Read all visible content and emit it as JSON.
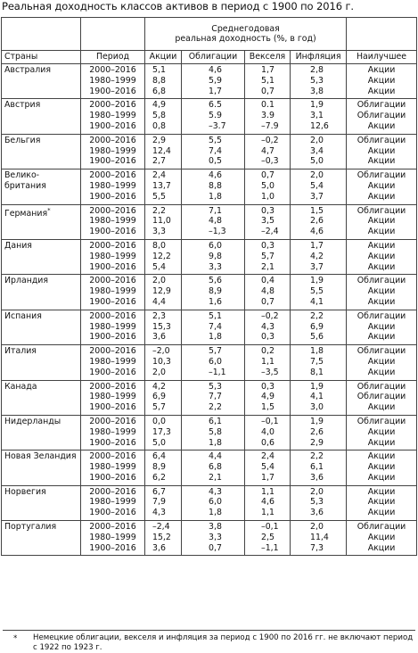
{
  "title": "Реальная доходность классов активов в период с 1900 по 2016 г.",
  "header": {
    "group": "Среднегодовая\nреальная доходность (%, в год)",
    "countries": "Страны",
    "period": "Период",
    "stocks": "Акции",
    "bonds": "Облигации",
    "bills": "Векселя",
    "inflation": "Инфляция",
    "best": "Наилучшее"
  },
  "rows": [
    {
      "country": "Австралия",
      "periods": [
        "2000–2016",
        "1980–1999",
        "1900–2016"
      ],
      "stocks": [
        "5,1",
        "8,8",
        "6,8"
      ],
      "bonds": [
        "4,6",
        "5,9",
        "1,7"
      ],
      "bills": [
        "1,7",
        "5,1",
        "0,7"
      ],
      "inflation": [
        "2,8",
        "5,3",
        "3,8"
      ],
      "best": [
        "Акции",
        "Акции",
        "Акции"
      ]
    },
    {
      "country": "Австрия",
      "periods": [
        "2000–2016",
        "1980–1999",
        "1900–2016"
      ],
      "stocks": [
        "4,9",
        "5,8",
        "0,8"
      ],
      "bonds": [
        "6.5",
        "5.9",
        "–3.7"
      ],
      "bills": [
        "0.1",
        "3.9",
        "–7.9"
      ],
      "inflation": [
        "1,9",
        "3,1",
        "12,6"
      ],
      "best": [
        "Облигации",
        "Облигации",
        "Акции"
      ]
    },
    {
      "country": "Бельгия",
      "periods": [
        "2000–2016",
        "1980–1999",
        "1900–2016"
      ],
      "stocks": [
        "2,9",
        "12,4",
        "2,7"
      ],
      "bonds": [
        "5,5",
        "7,4",
        "0,5"
      ],
      "bills": [
        "–0,2",
        "4,7",
        "–0,3"
      ],
      "inflation": [
        "2,0",
        "3,4",
        "5,0"
      ],
      "best": [
        "Облигации",
        "Акции",
        "Акции"
      ]
    },
    {
      "country": "Велико-\nбритания",
      "periods": [
        "2000–2016",
        "1980–1999",
        "1900–2016"
      ],
      "stocks": [
        "2,4",
        "13,7",
        "5,5"
      ],
      "bonds": [
        "4,6",
        "8,8",
        "1,8"
      ],
      "bills": [
        "0,7",
        "5,0",
        "1,0"
      ],
      "inflation": [
        "2,0",
        "5,4",
        "3,7"
      ],
      "best": [
        "Облигации",
        "Акции",
        "Акции"
      ]
    },
    {
      "country": "Германия",
      "footmark": "*",
      "periods": [
        "2000–2016",
        "1980–1999",
        "1900–2016"
      ],
      "stocks": [
        "2,2",
        "11,0",
        "3,3"
      ],
      "bonds": [
        "7,1",
        "4,8",
        "–1,3"
      ],
      "bills": [
        "0,3",
        "3,5",
        "–2,4"
      ],
      "inflation": [
        "1,5",
        "2,6",
        "4,6"
      ],
      "best": [
        "Облигации",
        "Акции",
        "Акции"
      ]
    },
    {
      "country": "Дания",
      "periods": [
        "2000–2016",
        "1980–1999",
        "1900–2016"
      ],
      "stocks": [
        "8,0",
        "12,2",
        "5,4"
      ],
      "bonds": [
        "6,0",
        "9,8",
        "3,3"
      ],
      "bills": [
        "0,3",
        "5,7",
        "2,1"
      ],
      "inflation": [
        "1,7",
        "4,2",
        "3,7"
      ],
      "best": [
        "Акции",
        "Акции",
        "Акции"
      ]
    },
    {
      "country": "Ирландия",
      "periods": [
        "2000–2016",
        "1980–1999",
        "1900–2016"
      ],
      "stocks": [
        "2,0",
        "12,9",
        "4,4"
      ],
      "bonds": [
        "5,6",
        "8,9",
        "1,6"
      ],
      "bills": [
        "0,4",
        "4,8",
        "0,7"
      ],
      "inflation": [
        "1,9",
        "5,5",
        "4,1"
      ],
      "best": [
        "Облигации",
        "Акции",
        "Акции"
      ]
    },
    {
      "country": "Испания",
      "periods": [
        "2000–2016",
        "1980–1999",
        "1900–2016"
      ],
      "stocks": [
        "2,3",
        "15,3",
        "3,6"
      ],
      "bonds": [
        "5,1",
        "7,4",
        "1,8"
      ],
      "bills": [
        "–0,2",
        "4,3",
        "0,3"
      ],
      "inflation": [
        "2,2",
        "6,9",
        "5,6"
      ],
      "best": [
        "Облигации",
        "Акции",
        "Акции"
      ]
    },
    {
      "country": "Италия",
      "periods": [
        "2000–2016",
        "1980–1999",
        "1900–2016"
      ],
      "stocks": [
        "–2,0",
        "10,3",
        "2,0"
      ],
      "bonds": [
        "5,7",
        "6,0",
        "–1,1"
      ],
      "bills": [
        "0,2",
        "1,1",
        "–3,5"
      ],
      "inflation": [
        "1,8",
        "7,5",
        "8,1"
      ],
      "best": [
        "Облигации",
        "Акции",
        "Акции"
      ]
    },
    {
      "country": "Канада",
      "periods": [
        "2000–2016",
        "1980–1999",
        "1900–2016"
      ],
      "stocks": [
        "4,2",
        "6,9",
        "5,7"
      ],
      "bonds": [
        "5,3",
        "7,7",
        "2,2"
      ],
      "bills": [
        "0,3",
        "4,9",
        "1,5"
      ],
      "inflation": [
        "1,9",
        "4,1",
        "3,0"
      ],
      "best": [
        "Облигации",
        "Облигации",
        "Акции"
      ]
    },
    {
      "country": "Нидерланды",
      "periods": [
        "2000–2016",
        "1980–1999",
        "1900–2016"
      ],
      "stocks": [
        "0,0",
        "17,3",
        "5,0"
      ],
      "bonds": [
        "6,1",
        "5,8",
        "1,8"
      ],
      "bills": [
        "–0,1",
        "4,0",
        "0,6"
      ],
      "inflation": [
        "1,9",
        "2,6",
        "2,9"
      ],
      "best": [
        "Облигации",
        "Акции",
        "Акции"
      ]
    },
    {
      "country": "Новая Зеландия",
      "periods": [
        "2000–2016",
        "1980–1999",
        "1900–2016"
      ],
      "stocks": [
        "6,4",
        "8,9",
        "6,2"
      ],
      "bonds": [
        "4,4",
        "6,8",
        "2,1"
      ],
      "bills": [
        "2,4",
        "5,4",
        "1,7"
      ],
      "inflation": [
        "2,2",
        "6,1",
        "3,6"
      ],
      "best": [
        "Акции",
        "Акции",
        "Акции"
      ]
    },
    {
      "country": "Норвегия",
      "periods": [
        "2000–2016",
        "1980–1999",
        "1900–2016"
      ],
      "stocks": [
        "6,7",
        "7,9",
        "4,3"
      ],
      "bonds": [
        "4,3",
        "6,0",
        "1,8"
      ],
      "bills": [
        "1,1",
        "4,6",
        "1,1"
      ],
      "inflation": [
        "2,0",
        "5,3",
        "3,6"
      ],
      "best": [
        "Акции",
        "Акции",
        "Акции"
      ]
    },
    {
      "country": "Португалия",
      "periods": [
        "2000–2016",
        "1980–1999",
        "1900–2016"
      ],
      "stocks": [
        "–2,4",
        "15,2",
        "3,6"
      ],
      "bonds": [
        "3,8",
        "3,3",
        "0,7"
      ],
      "bills": [
        "–0,1",
        "2,5",
        "–1,1"
      ],
      "inflation": [
        "2,0",
        "11,4",
        "7,3"
      ],
      "best": [
        "Облигации",
        "Акции",
        "Акции"
      ]
    }
  ],
  "footnote": {
    "mark": "*",
    "text": "Немецкие облигации, векселя и инфляция за период с 1900 по 2016 гг. не включают период с 1922 по 1923 г."
  }
}
